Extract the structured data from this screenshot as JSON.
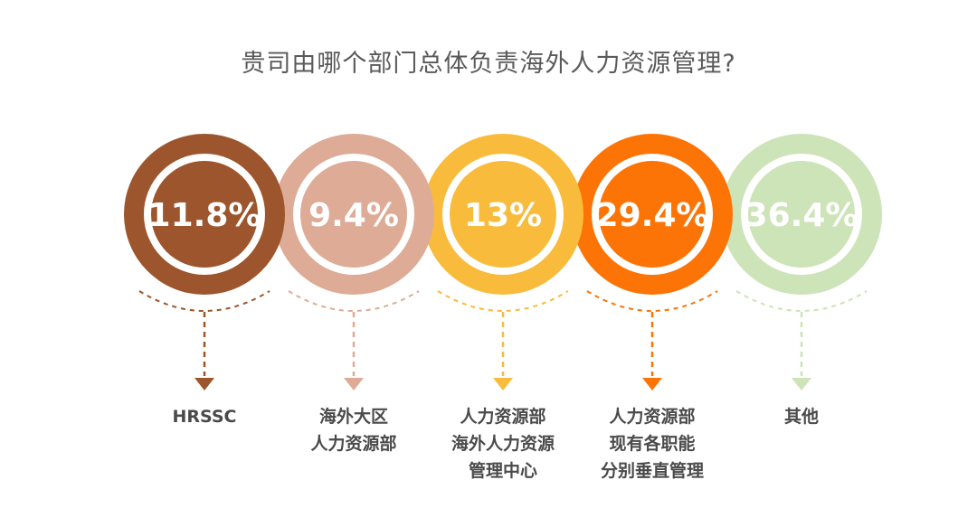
{
  "chart_data": {
    "type": "bubble-percentages",
    "title": "贵司由哪个部门总体负责海外人力资源管理?",
    "categories": [
      {
        "label_lines": [
          "HRSSC"
        ],
        "value": 11.8,
        "display": "11.8%",
        "color": "#9c552c"
      },
      {
        "label_lines": [
          "海外大区",
          "人力资源部"
        ],
        "value": 9.4,
        "display": "9.4%",
        "color": "#ddab96"
      },
      {
        "label_lines": [
          "人力资源部",
          "海外人力资源",
          "管理中心"
        ],
        "value": 13,
        "display": "13%",
        "color": "#f9bb3b"
      },
      {
        "label_lines": [
          "人力资源部",
          "现有各职能",
          "分别垂直管理"
        ],
        "value": 29.4,
        "display": "29.4%",
        "color": "#fc7405"
      },
      {
        "label_lines": [
          "其他"
        ],
        "value": 36.4,
        "display": "36.4%",
        "color": "#cde3b8"
      }
    ]
  }
}
